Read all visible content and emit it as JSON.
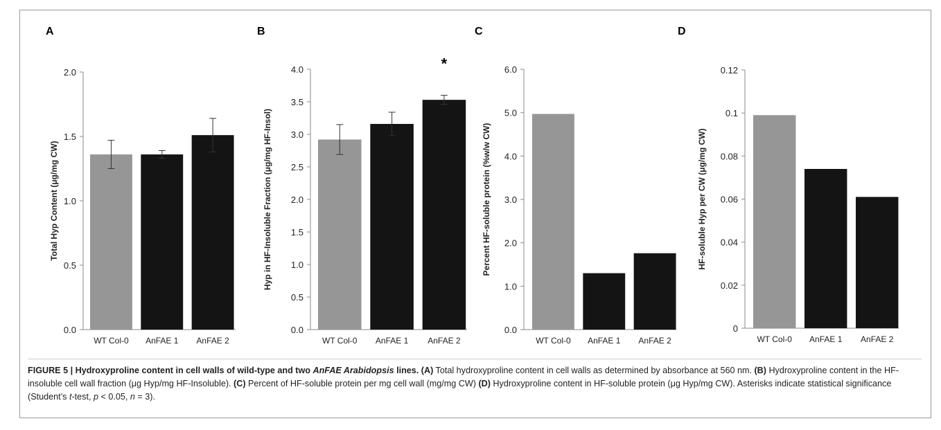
{
  "panels": [
    "A",
    "B",
    "C",
    "D"
  ],
  "chart_data": [
    {
      "type": "bar",
      "panel": "A",
      "categories": [
        "WT Col-0",
        "AnFAE 1",
        "AnFAE 2"
      ],
      "values": [
        1.36,
        1.36,
        1.51
      ],
      "errors": [
        0.11,
        0.03,
        0.13
      ],
      "ylabel": "Total Hyp Content (μg/mg CW)",
      "ylim": [
        0,
        2.0
      ],
      "yticks": [
        "0.0",
        "0.5",
        "1.0",
        "1.5",
        "2.0"
      ],
      "bar_colors": [
        "#969696",
        "#141414",
        "#141414"
      ],
      "significance": [
        "",
        "",
        ""
      ]
    },
    {
      "type": "bar",
      "panel": "B",
      "categories": [
        "WT Col-0",
        "AnFAE 1",
        "AnFAE 2"
      ],
      "values": [
        2.92,
        3.16,
        3.53
      ],
      "errors": [
        0.23,
        0.18,
        0.07
      ],
      "ylabel": "Hyp in HF-Insoluble Fraction (μg/mg HF-Insol)",
      "ylim": [
        0,
        4.0
      ],
      "yticks": [
        "0.0",
        "0.5",
        "1.0",
        "1.5",
        "2.0",
        "2.5",
        "3.0",
        "3.5",
        "4.0"
      ],
      "bar_colors": [
        "#969696",
        "#141414",
        "#141414"
      ],
      "significance": [
        "",
        "",
        "*"
      ]
    },
    {
      "type": "bar",
      "panel": "C",
      "categories": [
        "WT Col-0",
        "AnFAE 1",
        "AnFAE 2"
      ],
      "values": [
        4.97,
        1.3,
        1.76
      ],
      "errors": [],
      "ylabel": "Percent HF-soluble protein (%w/w CW)",
      "ylim": [
        0,
        6.0
      ],
      "yticks": [
        "0.0",
        "1.0",
        "2.0",
        "3.0",
        "4.0",
        "5.0",
        "6.0"
      ],
      "bar_colors": [
        "#969696",
        "#141414",
        "#141414"
      ],
      "significance": [
        "",
        "",
        ""
      ]
    },
    {
      "type": "bar",
      "panel": "D",
      "categories": [
        "WT Col-0",
        "AnFAE 1",
        "AnFAE 2"
      ],
      "values": [
        0.099,
        0.074,
        0.061
      ],
      "errors": [],
      "ylabel": "HF-soluble Hyp per CW (μg/mg CW)",
      "ylim": [
        0,
        0.12
      ],
      "yticks": [
        "0",
        "0.02",
        "0.04",
        "0.06",
        "0.08",
        "0.1",
        "0.12"
      ],
      "bar_colors": [
        "#969696",
        "#141414",
        "#141414"
      ],
      "significance": [
        "",
        "",
        ""
      ]
    }
  ],
  "caption": {
    "lead": "FIGURE 5 | Hydroxyproline content in cell walls of wild-type and two ",
    "lead_italic": "AnFAE Arabidopsis",
    "lead_tail": " lines.",
    "a_tag": "(A)",
    "a_text": " Total hydroxyproline content in cell walls as determined by absorbance at 560 nm. ",
    "b_tag": "(B)",
    "b_text": " Hydroxyproline content in the HF-insoluble cell wall fraction (μg Hyp/mg HF-Insoluble). ",
    "c_tag": "(C)",
    "c_text": " Percent of HF-soluble protein per mg cell wall (mg/mg CW) ",
    "d_tag": "(D)",
    "d_text": " Hydroxyproline content in HF-soluble protein (μg Hyp/mg CW). Asterisks indicate statistical significance (Student’s ",
    "t_italic": "t",
    "d_text2": "-test, ",
    "p_italic": "p",
    "d_text3": " < 0.05, ",
    "n_italic": "n",
    "d_text4": " = 3)."
  }
}
